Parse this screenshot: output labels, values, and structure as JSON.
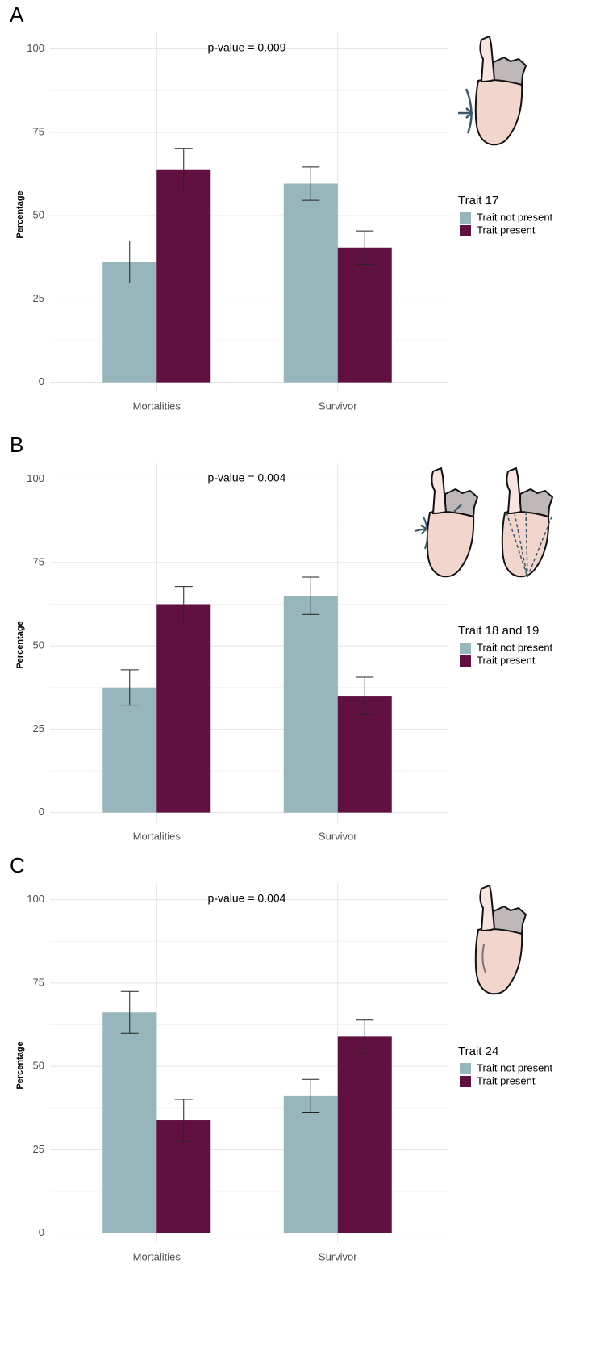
{
  "chart_data": [
    {
      "type": "bar",
      "panel_label": "A",
      "annotation": "p-value = 0.009",
      "y_label": "Percentage",
      "categories": [
        "Mortalities",
        "Survivor"
      ],
      "legend_title": "Trait 17",
      "series": [
        {
          "name": "Trait not present",
          "color": "#97b6bb",
          "values": [
            36.1,
            59.6
          ],
          "errors": [
            6.3,
            5.0
          ]
        },
        {
          "name": "Trait present",
          "color": "#611141",
          "values": [
            63.9,
            40.4
          ],
          "errors": [
            6.3,
            5.0
          ]
        }
      ],
      "ylim": [
        -3,
        105
      ],
      "yticks": [
        0,
        25,
        50,
        75,
        100
      ],
      "grid": true
    },
    {
      "type": "bar",
      "panel_label": "B",
      "annotation": "p-value = 0.004",
      "y_label": "Percentage",
      "categories": [
        "Mortalities",
        "Survivor"
      ],
      "legend_title": "Trait 18 and 19",
      "series": [
        {
          "name": "Trait not present",
          "color": "#97b6bb",
          "values": [
            37.5,
            65.0
          ],
          "errors": [
            5.3,
            5.6
          ]
        },
        {
          "name": "Trait present",
          "color": "#611141",
          "values": [
            62.5,
            35.0
          ],
          "errors": [
            5.3,
            5.6
          ]
        }
      ],
      "ylim": [
        -3,
        105
      ],
      "yticks": [
        0,
        25,
        50,
        75,
        100
      ],
      "grid": true
    },
    {
      "type": "bar",
      "panel_label": "C",
      "annotation": "p-value = 0.004",
      "y_label": "Percentage",
      "categories": [
        "Mortalities",
        "Survivor"
      ],
      "legend_title": "Trait 24",
      "series": [
        {
          "name": "Trait not present",
          "color": "#97b6bb",
          "values": [
            66.2,
            41.1
          ],
          "errors": [
            6.3,
            5.0
          ]
        },
        {
          "name": "Trait present",
          "color": "#611141",
          "values": [
            33.8,
            58.9
          ],
          "errors": [
            6.3,
            5.0
          ]
        }
      ],
      "ylim": [
        -3,
        105
      ],
      "yticks": [
        0,
        25,
        50,
        75,
        100
      ],
      "grid": true
    }
  ]
}
